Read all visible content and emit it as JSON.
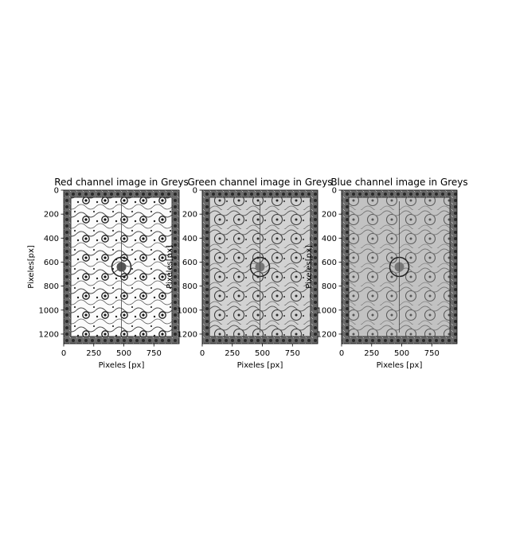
{
  "chart_data": [
    {
      "type": "heatmap",
      "title": "Red channel image in Greys",
      "xlabel": "Pixeles [px]",
      "ylabel": "Pixeles[px]",
      "xlim": [
        0,
        960
      ],
      "ylim": [
        1280,
        0
      ],
      "xticks": [
        0,
        250,
        500,
        750
      ],
      "yticks": [
        0,
        200,
        400,
        600,
        800,
        1000,
        1200
      ],
      "colormap": "Greys",
      "content": "grayscale carpet image (red channel)",
      "tone": "high contrast, mostly white field with dark motifs"
    },
    {
      "type": "heatmap",
      "title": "Green channel image in Greys",
      "xlabel": "Pixeles [px]",
      "ylabel": "Pixeles[px]",
      "xlim": [
        0,
        960
      ],
      "ylim": [
        1280,
        0
      ],
      "xticks": [
        0,
        250,
        500,
        750
      ],
      "yticks": [
        0,
        200,
        400,
        600,
        800,
        1000,
        1200
      ],
      "colormap": "Greys",
      "content": "grayscale carpet image (green channel)",
      "tone": "medium contrast, light grey field"
    },
    {
      "type": "heatmap",
      "title": "Blue channel image in Greys",
      "xlabel": "Pixeles [px]",
      "ylabel": "Pixeles[px]",
      "xlim": [
        0,
        960
      ],
      "ylim": [
        1280,
        0
      ],
      "xticks": [
        0,
        250,
        500,
        750
      ],
      "yticks": [
        0,
        200,
        400,
        600,
        800,
        1000,
        1200
      ],
      "colormap": "Greys",
      "content": "grayscale carpet image (blue channel)",
      "tone": "low contrast, grey field"
    }
  ]
}
